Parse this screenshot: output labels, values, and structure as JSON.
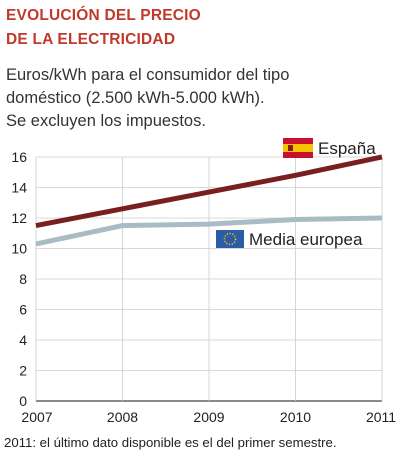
{
  "header": {
    "title_lines": [
      "EVOLUCIÓN DEL PRECIO",
      "DE LA ELECTRICIDAD"
    ],
    "subtitle_lines": [
      "Euros/kWh para el consumidor del tipo",
      "doméstico (2.500 kWh-5.000 kWh).",
      "Se excluyen los impuestos."
    ]
  },
  "footnote": "2011: el último dato disponible es el del primer semestre.",
  "chart_data": {
    "type": "line",
    "x": [
      "2007",
      "2008",
      "2009",
      "2010",
      "2011"
    ],
    "ylim": [
      0,
      16
    ],
    "yticks": [
      0,
      2,
      4,
      6,
      8,
      10,
      12,
      14,
      16
    ],
    "grid": true,
    "series": [
      {
        "name": "España",
        "values": [
          11.5,
          12.6,
          13.7,
          14.8,
          16.0
        ],
        "color": "#7a1f1f",
        "legend_icon": "spain-flag-icon"
      },
      {
        "name": "Media europea",
        "values": [
          10.3,
          11.5,
          11.6,
          11.9,
          12.0
        ],
        "color": "#a9bcc5",
        "legend_icon": "eu-flag-icon"
      }
    ],
    "legend": [
      {
        "label": "España",
        "placement": "top-right"
      },
      {
        "label": "Media europea",
        "placement": "right"
      }
    ]
  }
}
